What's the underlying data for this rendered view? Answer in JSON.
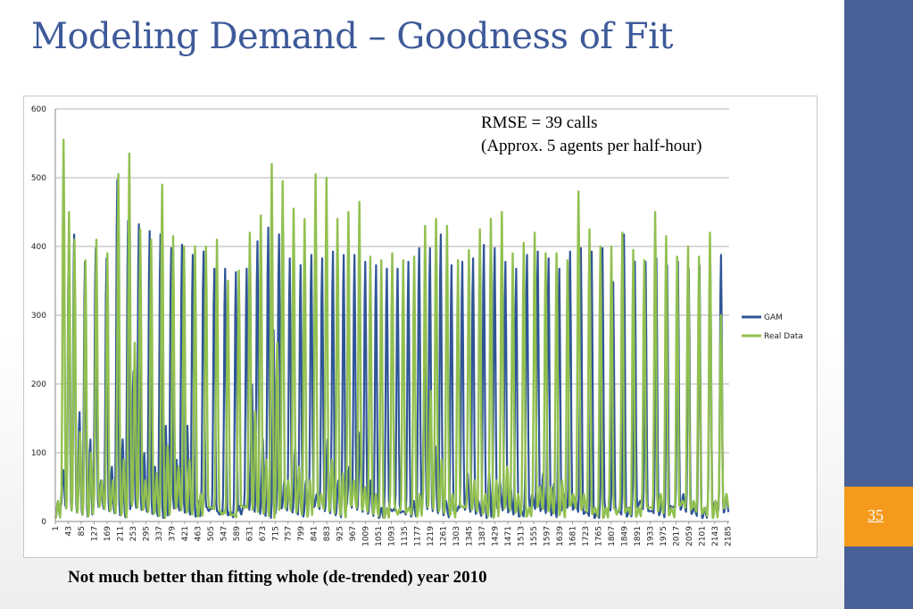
{
  "slide": {
    "title": "Modeling Demand – Goodness of Fit",
    "page_number": "35",
    "caption": "Not much better than fitting whole (de-trended) year 2010",
    "accent_color": "#4a6098",
    "page_box_color": "#f59a1c",
    "title_color": "#3d5a99"
  },
  "annotation": {
    "line1": "RMSE = 39 calls",
    "line2": "(Approx. 5 agents per half-hour)"
  },
  "chart_data": {
    "type": "line",
    "title": "",
    "xlabel": "",
    "ylabel": "",
    "ylim": [
      0,
      600
    ],
    "yticks": [
      0,
      100,
      200,
      300,
      400,
      500,
      600
    ],
    "grid": true,
    "legend_position": "right",
    "x_range": [
      1,
      2190
    ],
    "x_tick_labels": [
      "1",
      "43",
      "85",
      "127",
      "169",
      "211",
      "253",
      "295",
      "337",
      "379",
      "421",
      "463",
      "505",
      "547",
      "589",
      "631",
      "673",
      "715",
      "757",
      "799",
      "841",
      "883",
      "925",
      "967",
      "1009",
      "1051",
      "1093",
      "1135",
      "1177",
      "1219",
      "1261",
      "1303",
      "1345",
      "1387",
      "1429",
      "1471",
      "1513",
      "1555",
      "1597",
      "1639",
      "1681",
      "1723",
      "1765",
      "1807",
      "1849",
      "1891",
      "1933",
      "1975",
      "2017",
      "2059",
      "2101",
      "2143",
      "2185"
    ],
    "period": 24,
    "series": [
      {
        "name": "GAM",
        "color": "#2f5597",
        "daily_peaks": [
          30,
          75,
          400,
          420,
          160,
          380,
          120,
          400,
          60,
          385,
          80,
          500,
          120,
          440,
          220,
          435,
          100,
          425,
          80,
          420,
          140,
          400,
          90,
          405,
          140,
          390,
          30,
          395,
          15,
          370,
          10,
          370,
          15,
          365,
          10,
          370,
          200,
          410,
          120,
          430,
          280,
          420,
          60,
          385,
          110,
          375,
          60,
          390,
          40,
          385,
          120,
          395,
          60,
          390,
          80,
          390,
          130,
          380,
          60,
          375,
          20,
          370,
          15,
          370,
          15,
          380,
          30,
          400,
          230,
          400,
          110,
          420,
          30,
          375,
          15,
          380,
          70,
          385,
          30,
          405,
          70,
          400,
          60,
          380,
          50,
          370,
          15,
          390,
          40,
          395,
          70,
          385,
          55,
          370,
          40,
          395,
          35,
          400,
          15,
          395,
          15,
          400,
          15,
          350,
          15,
          420,
          20,
          380,
          30,
          380,
          15,
          385,
          30,
          375,
          20,
          380,
          40,
          370,
          20,
          375,
          20,
          380,
          30,
          390,
          40
        ]
      },
      {
        "name": "Real Data",
        "color": "#92c050",
        "daily_peaks": [
          30,
          555,
          450,
          410,
          130,
          380,
          100,
          410,
          60,
          390,
          60,
          505,
          90,
          535,
          260,
          425,
          60,
          410,
          70,
          490,
          110,
          415,
          80,
          400,
          90,
          400,
          40,
          400,
          20,
          410,
          10,
          350,
          10,
          365,
          20,
          420,
          160,
          445,
          90,
          520,
          260,
          495,
          60,
          455,
          80,
          440,
          60,
          505,
          40,
          500,
          90,
          440,
          70,
          450,
          60,
          465,
          50,
          385,
          40,
          380,
          20,
          390,
          10,
          380,
          20,
          385,
          40,
          430,
          190,
          440,
          90,
          430,
          40,
          380,
          20,
          395,
          60,
          425,
          40,
          440,
          60,
          450,
          80,
          390,
          40,
          405,
          20,
          420,
          50,
          390,
          50,
          390,
          60,
          380,
          40,
          480,
          40,
          425,
          20,
          400,
          20,
          400,
          10,
          420,
          20,
          395,
          20,
          380,
          20,
          450,
          40,
          415,
          20,
          385,
          30,
          400,
          30,
          385,
          20,
          420,
          30,
          300,
          40
        ]
      }
    ]
  }
}
